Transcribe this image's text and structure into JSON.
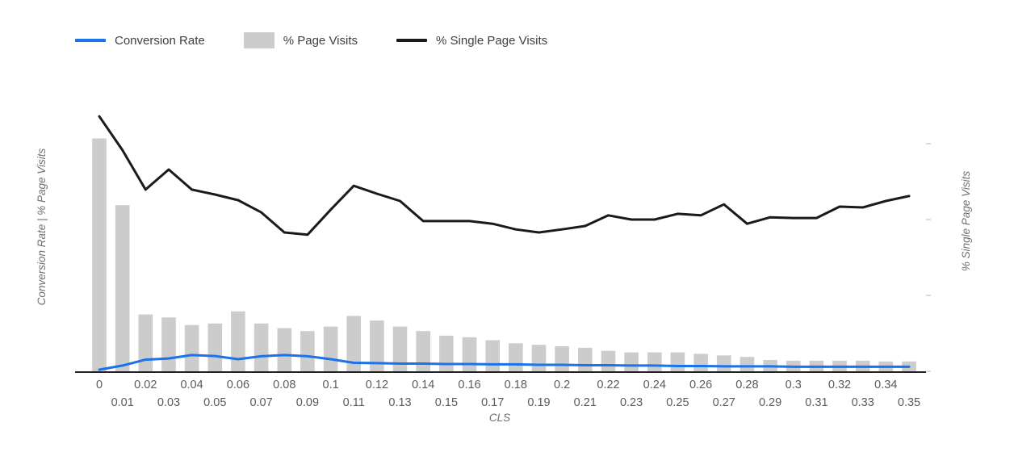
{
  "legend": {
    "items": [
      {
        "label": "Conversion Rate",
        "color": "#1a73e8",
        "marker": "line"
      },
      {
        "label": "% Page Visits",
        "color": "#cccccc",
        "marker": "box"
      },
      {
        "label": "% Single Page Visits",
        "color": "#1a1a1a",
        "marker": "line"
      }
    ]
  },
  "axes": {
    "left_title": "Conversion Rate | % Page Visits",
    "right_title": "% Single Page Visits",
    "x_title": "CLS"
  },
  "chart_data": {
    "type": "combo-bar-line",
    "title": "",
    "xlabel": "CLS",
    "legend_position": "top-left",
    "grid": false,
    "values_estimated": true,
    "x": [
      0,
      0.01,
      0.02,
      0.03,
      0.04,
      0.05,
      0.06,
      0.07,
      0.08,
      0.09,
      0.1,
      0.11,
      0.12,
      0.13,
      0.14,
      0.15,
      0.16,
      0.17,
      0.18,
      0.19,
      0.2,
      0.21,
      0.22,
      0.23,
      0.24,
      0.25,
      0.26,
      0.27,
      0.28,
      0.29,
      0.3,
      0.31,
      0.32,
      0.33,
      0.34,
      0.35
    ],
    "x_tick_labels": [
      "0",
      "0.01",
      "0.02",
      "0.03",
      "0.04",
      "0.05",
      "0.06",
      "0.07",
      "0.08",
      "0.09",
      "0.1",
      "0.11",
      "0.12",
      "0.13",
      "0.14",
      "0.15",
      "0.16",
      "0.17",
      "0.18",
      "0.19",
      "0.2",
      "0.21",
      "0.22",
      "0.23",
      "0.24",
      "0.25",
      "0.26",
      "0.27",
      "0.28",
      "0.29",
      "0.3",
      "0.31",
      "0.32",
      "0.33",
      "0.34",
      "0.35"
    ],
    "series": [
      {
        "name": "% Page Visits",
        "type": "bar",
        "axis": "left",
        "color": "#cccccc",
        "values": [
          15.4,
          11.0,
          3.8,
          3.6,
          3.1,
          3.2,
          4.0,
          3.2,
          2.9,
          2.7,
          3.0,
          3.7,
          3.4,
          3.0,
          2.7,
          2.4,
          2.3,
          2.1,
          1.9,
          1.8,
          1.7,
          1.6,
          1.4,
          1.3,
          1.3,
          1.3,
          1.2,
          1.1,
          1.0,
          0.8,
          0.75,
          0.75,
          0.75,
          0.75,
          0.7,
          0.7
        ]
      },
      {
        "name": "Conversion Rate",
        "type": "line",
        "axis": "left",
        "color": "#1a73e8",
        "values": [
          0.16,
          0.43,
          0.82,
          0.9,
          1.12,
          1.06,
          0.85,
          1.04,
          1.12,
          1.04,
          0.85,
          0.61,
          0.59,
          0.56,
          0.56,
          0.53,
          0.53,
          0.51,
          0.51,
          0.48,
          0.48,
          0.45,
          0.45,
          0.43,
          0.43,
          0.4,
          0.4,
          0.38,
          0.38,
          0.38,
          0.35,
          0.35,
          0.35,
          0.35,
          0.35,
          0.35
        ]
      },
      {
        "name": "% Single Page Visits",
        "type": "line",
        "axis": "right",
        "color": "#1a1a1a",
        "values": [
          67.2,
          58.3,
          47.9,
          53.2,
          47.9,
          46.6,
          45.1,
          41.9,
          36.6,
          36.0,
          42.6,
          48.9,
          46.8,
          44.9,
          39.6,
          39.6,
          39.6,
          38.9,
          37.4,
          36.6,
          37.4,
          38.3,
          41.1,
          40.0,
          40.0,
          41.5,
          41.1,
          44.0,
          38.9,
          40.6,
          40.4,
          40.4,
          43.4,
          43.2,
          44.9,
          46.2
        ]
      }
    ],
    "left_axis": {
      "title": "Conversion Rate | % Page Visits",
      "range": [
        0,
        19.5
      ],
      "tick_labels_visible": false
    },
    "right_axis": {
      "title": "% Single Page Visits",
      "range": [
        0,
        78
      ],
      "ticks": [
        0,
        20,
        40,
        60
      ],
      "tick_labels_visible": false
    },
    "x_axis": {
      "title": "CLS",
      "stagger_labels": true
    }
  },
  "colors": {
    "background": "#ffffff",
    "bar": "#cccccc",
    "conversion_line": "#1a73e8",
    "single_page_line": "#1a1a1a",
    "axis_line": "#212121",
    "tick_label": "#5b5b5b",
    "axis_title": "#6f6f6f",
    "legend_text": "#3c4043",
    "right_tick": "#cfcfcf"
  }
}
